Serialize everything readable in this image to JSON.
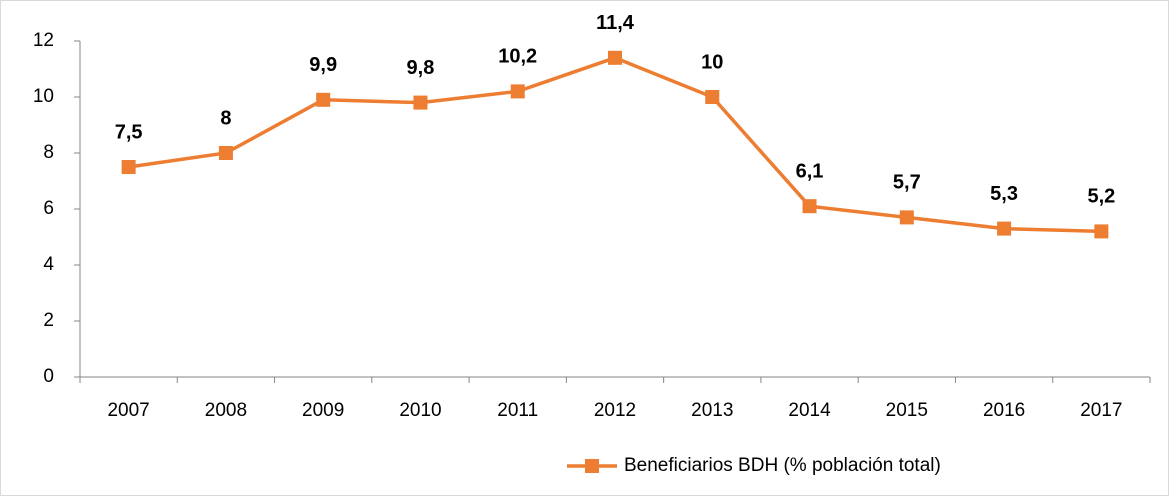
{
  "chart_data": {
    "type": "line",
    "categories": [
      "2007",
      "2008",
      "2009",
      "2010",
      "2011",
      "2012",
      "2013",
      "2014",
      "2015",
      "2016",
      "2017"
    ],
    "series": [
      {
        "name": "Beneficiarios BDH (% población total)",
        "color": "#ed7d31",
        "values": [
          7.5,
          8,
          9.9,
          9.8,
          10.2,
          11.4,
          10,
          6.1,
          5.7,
          5.3,
          5.2
        ],
        "value_labels": [
          "7,5",
          "8",
          "9,9",
          "9,8",
          "10,2",
          "11,4",
          "10",
          "6,1",
          "5,7",
          "5,3",
          "5,2"
        ]
      }
    ],
    "ylim": [
      0,
      12
    ],
    "yticks": [
      0,
      2,
      4,
      6,
      8,
      10,
      12
    ],
    "grid": false,
    "legend": "bottom"
  }
}
